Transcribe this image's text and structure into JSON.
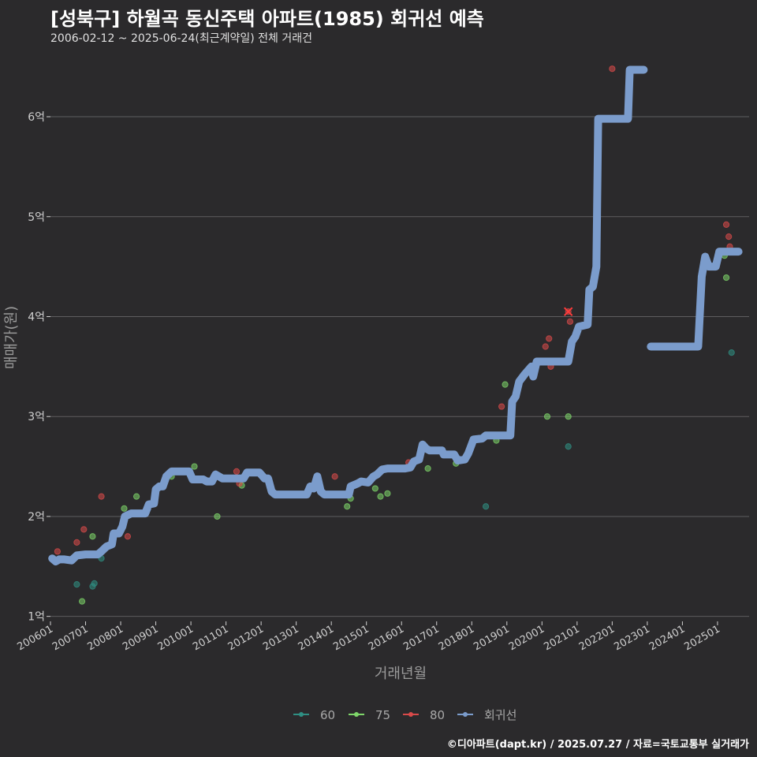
{
  "header": {
    "title": "[성북구] 하월곡 동신주택 아파트(1985) 회귀선 예측",
    "subtitle": "2006-02-12 ~ 2025-06-24(최근계약일) 전체 거래건"
  },
  "footer": {
    "credit": "©디아파트(dapt.kr) / 2025.07.27 / 자료=국토교통부 실거래가"
  },
  "colors": {
    "bg": "#2b2a2c",
    "grid": "#5e5d5f",
    "s60": "#2f8f83",
    "s75": "#7ed66a",
    "s80": "#d94a4a",
    "reg": "#7b9ccc"
  },
  "chart_data": {
    "type": "scatter",
    "title": "[성북구] 하월곡 동신주택 아파트(1985) 회귀선 예측",
    "xlabel": "거래년월",
    "ylabel": "매매가(원)",
    "xlim": [
      2006.0,
      2025.9
    ],
    "ylim": [
      0.95,
      6.6
    ],
    "yticks": [
      1,
      2,
      3,
      4,
      5,
      6
    ],
    "ytick_labels": [
      "1억",
      "2억",
      "3억",
      "4억",
      "5억",
      "6억"
    ],
    "xticks": [
      2006,
      2007,
      2008,
      2009,
      2010,
      2011,
      2012,
      2013,
      2014,
      2015,
      2016,
      2017,
      2018,
      2019,
      2020,
      2021,
      2022,
      2023,
      2024,
      2025
    ],
    "xtick_labels": [
      "200601",
      "200701",
      "200801",
      "200901",
      "201001",
      "201101",
      "201201",
      "201301",
      "201401",
      "201501",
      "201601",
      "201701",
      "201801",
      "201901",
      "202001",
      "202101",
      "202201",
      "202301",
      "202401",
      "202501"
    ],
    "legend": [
      "60",
      "75",
      "80",
      "회귀선"
    ],
    "series": [
      {
        "name": "60",
        "points": [
          [
            2006.75,
            1.32
          ],
          [
            2007.2,
            1.3
          ],
          [
            2007.25,
            1.33
          ],
          [
            2007.45,
            1.58
          ],
          [
            2018.4,
            2.1
          ],
          [
            2020.75,
            2.7
          ],
          [
            2025.4,
            3.64
          ]
        ]
      },
      {
        "name": "75",
        "points": [
          [
            2006.9,
            1.15
          ],
          [
            2007.2,
            1.8
          ],
          [
            2008.1,
            2.08
          ],
          [
            2008.45,
            2.2
          ],
          [
            2009.45,
            2.4
          ],
          [
            2010.1,
            2.5
          ],
          [
            2010.75,
            2.0
          ],
          [
            2011.45,
            2.31
          ],
          [
            2014.45,
            2.1
          ],
          [
            2014.55,
            2.18
          ],
          [
            2015.25,
            2.28
          ],
          [
            2015.4,
            2.2
          ],
          [
            2015.6,
            2.23
          ],
          [
            2016.75,
            2.48
          ],
          [
            2017.55,
            2.53
          ],
          [
            2018.7,
            2.76
          ],
          [
            2018.95,
            3.32
          ],
          [
            2020.15,
            3.0
          ],
          [
            2020.75,
            3.0
          ],
          [
            2025.2,
            4.61
          ],
          [
            2025.25,
            4.39
          ]
        ]
      },
      {
        "name": "80",
        "points": [
          [
            2006.2,
            1.65
          ],
          [
            2006.75,
            1.74
          ],
          [
            2006.95,
            1.87
          ],
          [
            2007.45,
            2.2
          ],
          [
            2008.2,
            1.8
          ],
          [
            2011.3,
            2.45
          ],
          [
            2011.38,
            2.33
          ],
          [
            2014.1,
            2.4
          ],
          [
            2016.2,
            2.54
          ],
          [
            2018.85,
            3.1
          ],
          [
            2020.1,
            3.7
          ],
          [
            2020.2,
            3.78
          ],
          [
            2020.25,
            3.5
          ],
          [
            2020.75,
            4.05
          ],
          [
            2020.8,
            3.95
          ],
          [
            2022.0,
            6.48
          ],
          [
            2025.25,
            4.92
          ],
          [
            2025.32,
            4.8
          ],
          [
            2025.35,
            4.7
          ]
        ]
      }
    ],
    "regression": [
      [
        [
          2006.05,
          1.58
        ],
        [
          2006.15,
          1.55
        ],
        [
          2006.25,
          1.57
        ],
        [
          2006.4,
          1.57
        ],
        [
          2006.6,
          1.56
        ],
        [
          2006.75,
          1.61
        ],
        [
          2007.0,
          1.62
        ],
        [
          2007.35,
          1.62
        ],
        [
          2007.45,
          1.65
        ],
        [
          2007.6,
          1.7
        ],
        [
          2007.75,
          1.72
        ],
        [
          2007.8,
          1.83
        ],
        [
          2007.95,
          1.83
        ],
        [
          2008.05,
          1.9
        ],
        [
          2008.12,
          2.0
        ],
        [
          2008.3,
          2.03
        ],
        [
          2008.6,
          2.03
        ],
        [
          2008.7,
          2.03
        ],
        [
          2008.8,
          2.12
        ],
        [
          2008.95,
          2.13
        ],
        [
          2009.0,
          2.27
        ],
        [
          2009.1,
          2.3
        ],
        [
          2009.2,
          2.3
        ],
        [
          2009.3,
          2.4
        ],
        [
          2009.45,
          2.45
        ],
        [
          2009.95,
          2.45
        ],
        [
          2010.05,
          2.37
        ],
        [
          2010.35,
          2.37
        ],
        [
          2010.45,
          2.35
        ],
        [
          2010.6,
          2.35
        ],
        [
          2010.7,
          2.42
        ],
        [
          2010.8,
          2.4
        ],
        [
          2010.9,
          2.38
        ],
        [
          2011.5,
          2.38
        ],
        [
          2011.6,
          2.44
        ],
        [
          2011.95,
          2.44
        ],
        [
          2012.1,
          2.38
        ],
        [
          2012.2,
          2.38
        ],
        [
          2012.3,
          2.25
        ],
        [
          2012.4,
          2.22
        ],
        [
          2013.3,
          2.22
        ],
        [
          2013.4,
          2.3
        ],
        [
          2013.5,
          2.28
        ],
        [
          2013.6,
          2.4
        ],
        [
          2013.7,
          2.25
        ],
        [
          2013.8,
          2.22
        ],
        [
          2014.5,
          2.22
        ],
        [
          2014.55,
          2.3
        ],
        [
          2014.75,
          2.33
        ],
        [
          2014.85,
          2.35
        ],
        [
          2015.05,
          2.34
        ],
        [
          2015.2,
          2.4
        ],
        [
          2015.3,
          2.42
        ],
        [
          2015.45,
          2.47
        ],
        [
          2015.6,
          2.48
        ],
        [
          2016.1,
          2.48
        ],
        [
          2016.25,
          2.49
        ],
        [
          2016.35,
          2.55
        ],
        [
          2016.5,
          2.57
        ],
        [
          2016.6,
          2.72
        ],
        [
          2016.7,
          2.68
        ],
        [
          2016.8,
          2.66
        ],
        [
          2017.15,
          2.66
        ],
        [
          2017.2,
          2.62
        ],
        [
          2017.5,
          2.62
        ],
        [
          2017.6,
          2.56
        ],
        [
          2017.8,
          2.57
        ],
        [
          2017.9,
          2.63
        ],
        [
          2018.05,
          2.77
        ],
        [
          2018.3,
          2.78
        ],
        [
          2018.4,
          2.81
        ],
        [
          2019.1,
          2.81
        ],
        [
          2019.15,
          3.15
        ],
        [
          2019.25,
          3.2
        ],
        [
          2019.35,
          3.35
        ],
        [
          2019.5,
          3.42
        ],
        [
          2019.7,
          3.5
        ],
        [
          2019.75,
          3.4
        ],
        [
          2019.85,
          3.55
        ],
        [
          2020.75,
          3.55
        ],
        [
          2020.85,
          3.75
        ],
        [
          2020.95,
          3.8
        ],
        [
          2021.05,
          3.9
        ],
        [
          2021.3,
          3.92
        ],
        [
          2021.35,
          4.27
        ],
        [
          2021.45,
          4.3
        ],
        [
          2021.55,
          4.5
        ],
        [
          2021.6,
          5.98
        ],
        [
          2022.45,
          5.98
        ],
        [
          2022.5,
          6.47
        ],
        [
          2022.9,
          6.47
        ]
      ],
      [
        [
          2023.1,
          3.7
        ],
        [
          2024.45,
          3.7
        ],
        [
          2024.55,
          4.4
        ],
        [
          2024.65,
          4.6
        ],
        [
          2024.75,
          4.5
        ],
        [
          2024.95,
          4.5
        ],
        [
          2025.05,
          4.65
        ],
        [
          2025.6,
          4.65
        ]
      ]
    ]
  }
}
